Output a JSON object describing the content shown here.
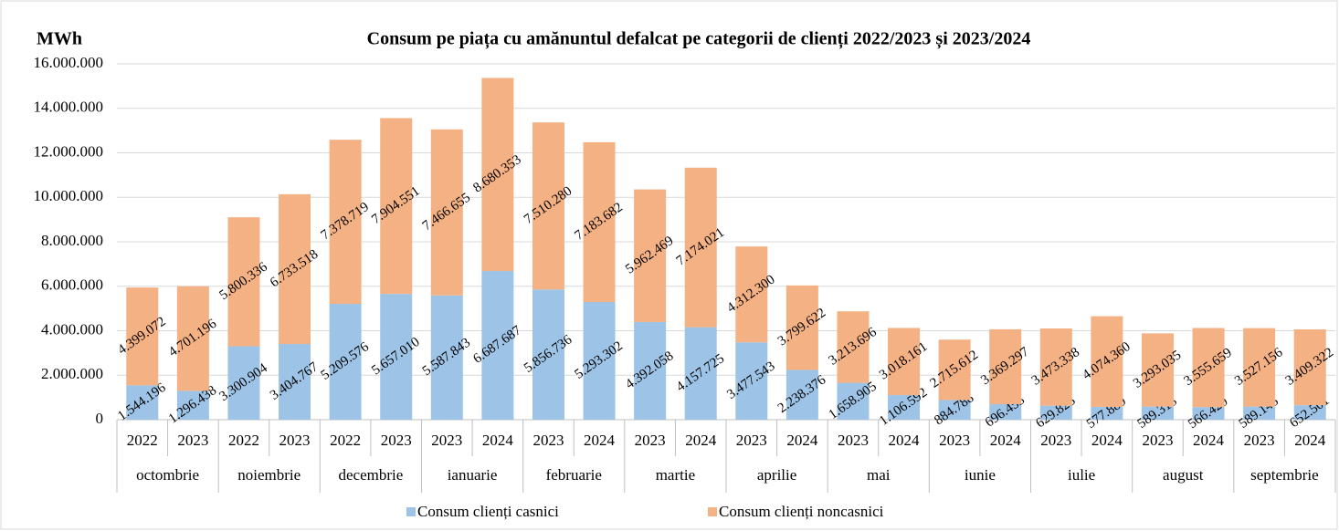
{
  "chart_data": {
    "type": "bar",
    "stacked": true,
    "title": "Consum pe piața cu amănuntul defalcat pe categorii de clienți 2022/2023 și 2023/2024",
    "y_label": "MWh",
    "categories": [
      "2022",
      "2023",
      "2022",
      "2023",
      "2022",
      "2023",
      "2023",
      "2024",
      "2023",
      "2024",
      "2023",
      "2024",
      "2023",
      "2024",
      "2023",
      "2024",
      "2023",
      "2024",
      "2023",
      "2024",
      "2023",
      "2024",
      "2023",
      "2024"
    ],
    "groups": [
      "octombrie",
      "noiembrie",
      "decembrie",
      "ianuarie",
      "februarie",
      "martie",
      "aprilie",
      "mai",
      "iunie",
      "iulie",
      "august",
      "septembrie"
    ],
    "series": [
      {
        "name": "Consum clienți casnici",
        "color": "#9dc3e6",
        "values": [
          1544196,
          1296438,
          3300904,
          3404767,
          5209576,
          5657010,
          5587843,
          6687687,
          5856736,
          5293302,
          4392058,
          4157725,
          3477543,
          2238376,
          1658905,
          1106592,
          884788,
          696453,
          629825,
          577889,
          589313,
          566420,
          589145,
          652501
        ],
        "value_labels": [
          "1.544.196",
          "1.296.438",
          "3.300.904",
          "3.404.767",
          "5.209.576",
          "5.657.010",
          "5.587.843",
          "6.687.687",
          "5.856.736",
          "5.293.302",
          "4.392.058",
          "4.157.725",
          "3.477.543",
          "2.238.376",
          "1.658.905",
          "1.106.592",
          "884.788",
          "696.453",
          "629.825",
          "577.889",
          "589.313",
          "566.420",
          "589.145",
          "652.501"
        ]
      },
      {
        "name": "Consum clienți noncasnici",
        "color": "#f4b183",
        "values": [
          4399072,
          4701196,
          5800336,
          6733518,
          7378719,
          7904551,
          7466655,
          8680353,
          7510280,
          7183682,
          5962469,
          7174021,
          4312300,
          3799622,
          3213696,
          3018161,
          2715612,
          3369297,
          3473338,
          4074360,
          3293035,
          3555659,
          3527156,
          3409322
        ],
        "value_labels": [
          "4.399.072",
          "4.701.196",
          "5.800.336",
          "6.733.518",
          "7.378.719",
          "7.904.551",
          "7.466.655",
          "8.680.353",
          "7.510.280",
          "7.183.682",
          "5.962.469",
          "7.174.021",
          "4.312.300",
          "3.799.622",
          "3.213.696",
          "3.018.161",
          "2.715.612",
          "3.369.297",
          "3.473.338",
          "4.074.360",
          "3.293.035",
          "3.555.659",
          "3.527.156",
          "3.409.322"
        ]
      }
    ],
    "ylim": [
      0,
      16000000
    ],
    "yticks": [
      0,
      {
        "value": 2000000,
        "label": "2.000.000"
      },
      {
        "value": 4000000,
        "label": "4.000.000"
      },
      {
        "value": 6000000,
        "label": "6.000.000"
      },
      {
        "value": 8000000,
        "label": "8.000.000"
      },
      {
        "value": 10000000,
        "label": "10.000.000"
      },
      {
        "value": 12000000,
        "label": "12.000.000"
      },
      {
        "value": 14000000,
        "label": "14.000.000"
      },
      {
        "value": 16000000,
        "label": "16.000.000"
      }
    ],
    "grid": true,
    "legend": "bottom"
  }
}
